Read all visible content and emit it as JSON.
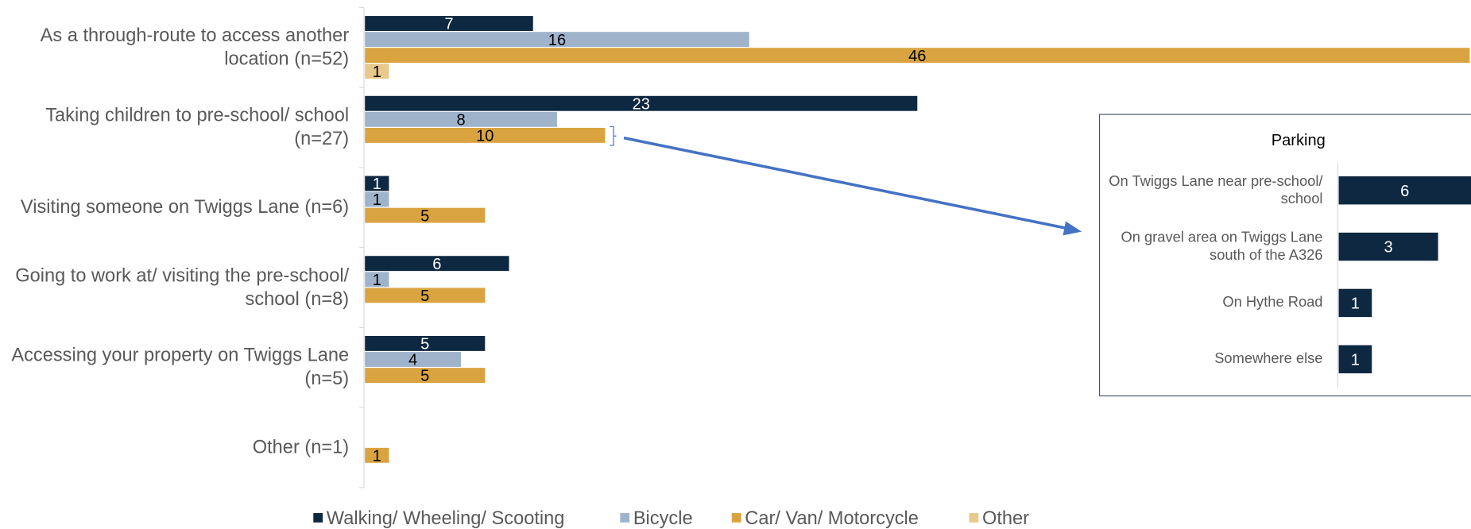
{
  "chart_data": [
    {
      "type": "bar",
      "orientation": "horizontal",
      "categories": [
        "As a through-route to access another location (n=52)",
        "Taking children to pre-school/ school (n=27)",
        "Visiting someone on Twiggs Lane (n=6)",
        "Going to work at/ visiting the pre-school/ school (n=8)",
        "Accessing your property on Twiggs Lane (n=5)",
        "Other (n=1)"
      ],
      "series": [
        {
          "name": "Walking/ Wheeling/ Scooting",
          "color": "#0e2841",
          "values": [
            7,
            23,
            1,
            6,
            5,
            null
          ]
        },
        {
          "name": "Bicycle",
          "color": "#9fb4cb",
          "values": [
            16,
            8,
            1,
            1,
            4,
            null
          ]
        },
        {
          "name": "Car/ Van/ Motorcycle",
          "color": "#d9a43f",
          "values": [
            46,
            10,
            5,
            5,
            5,
            1
          ]
        },
        {
          "name": "Other",
          "color": "#e9c98b",
          "values": [
            1,
            null,
            null,
            null,
            null,
            null
          ]
        }
      ],
      "legend": "bottom"
    },
    {
      "type": "bar",
      "orientation": "horizontal",
      "title": "Parking",
      "categories": [
        "On Twiggs Lane near pre-school/ school",
        "On gravel area on Twiggs Lane south of the A326",
        "On Hythe Road",
        "Somewhere else"
      ],
      "values": [
        6,
        3,
        1,
        1
      ],
      "color": "#0e2841"
    }
  ]
}
